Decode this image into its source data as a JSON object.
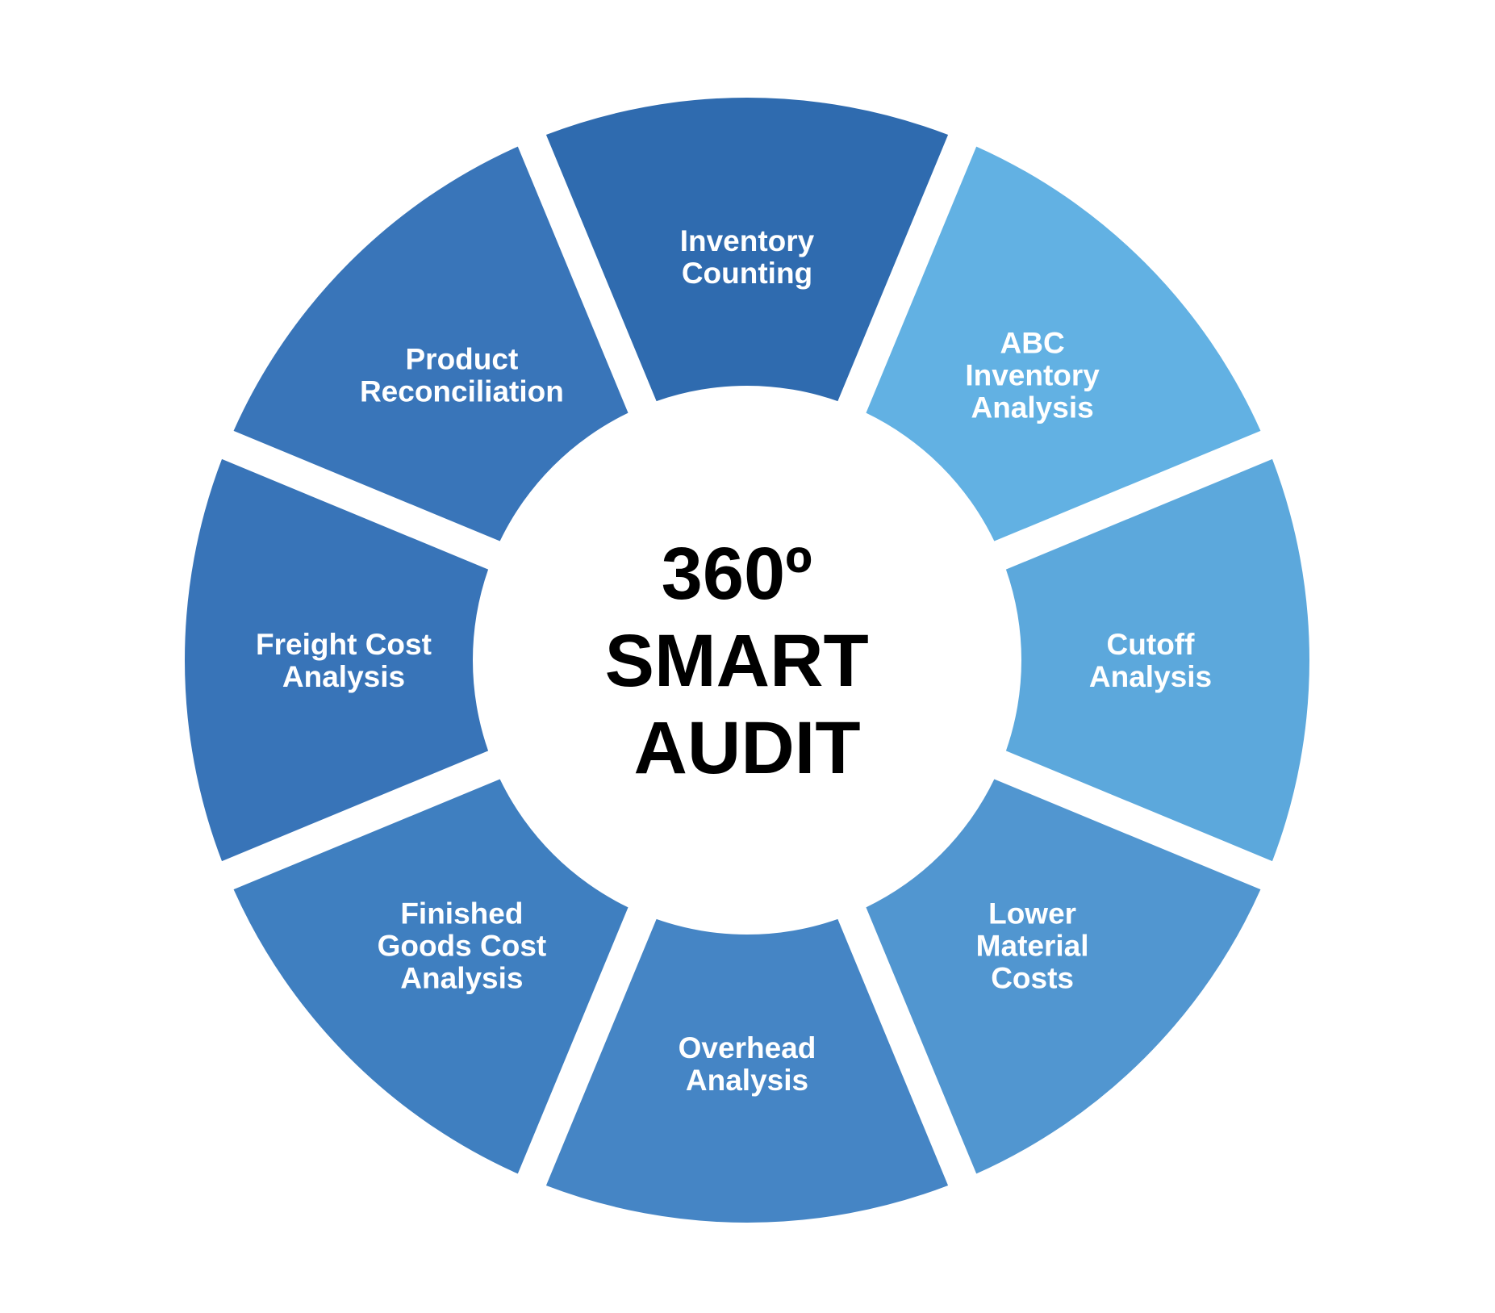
{
  "center": {
    "lines": [
      "360º",
      "SMART",
      "AUDIT"
    ]
  },
  "segments": [
    {
      "id": "inventory-counting",
      "lines": [
        "Inventory",
        "Counting"
      ],
      "color": "#2f6baf"
    },
    {
      "id": "abc-inventory-analysis",
      "lines": [
        "ABC",
        "Inventory",
        "Analysis"
      ],
      "color": "#62b1e3"
    },
    {
      "id": "cutoff-analysis",
      "lines": [
        "Cutoff",
        "Analysis"
      ],
      "color": "#5ca8dc"
    },
    {
      "id": "lower-material-costs",
      "lines": [
        "Lower",
        "Material",
        "Costs"
      ],
      "color": "#5196d0"
    },
    {
      "id": "overhead-analysis",
      "lines": [
        "Overhead",
        "Analysis"
      ],
      "color": "#4585c5"
    },
    {
      "id": "finished-goods-cost-analysis",
      "lines": [
        "Finished",
        "Goods Cost",
        "Analysis"
      ],
      "color": "#3f7fc0"
    },
    {
      "id": "freight-cost-analysis",
      "lines": [
        "Freight Cost",
        "Analysis"
      ],
      "color": "#3874b8"
    },
    {
      "id": "product-reconciliation",
      "lines": [
        "Product",
        "Reconciliation"
      ],
      "color": "#3975b9"
    }
  ]
}
